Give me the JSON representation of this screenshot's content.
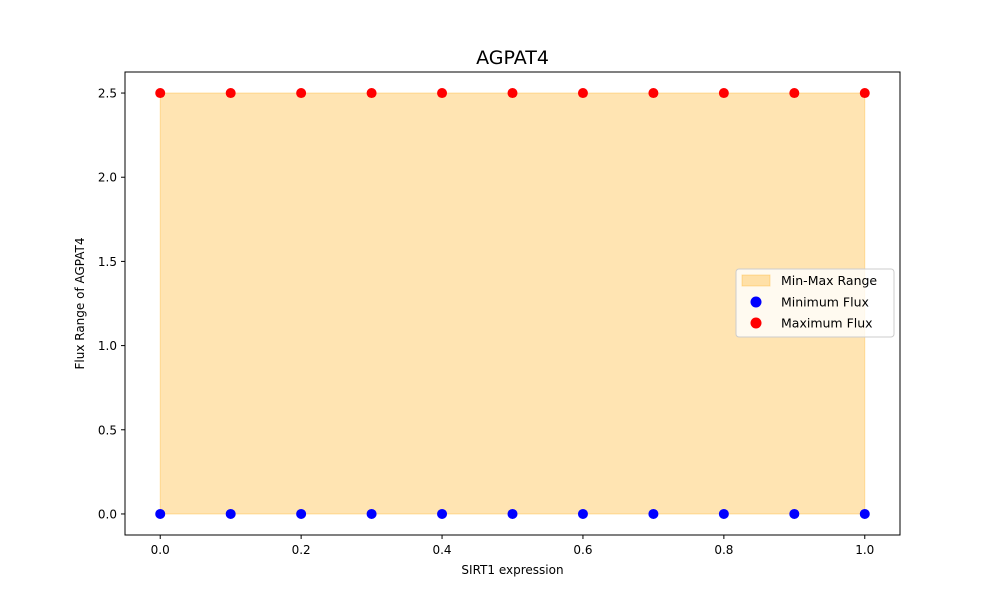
{
  "chart_data": {
    "type": "scatter",
    "title": "AGPAT4",
    "xlabel": "SIRT1 expression",
    "ylabel": "Flux Range of AGPAT4",
    "xlim": [
      -0.05,
      1.05
    ],
    "ylim": [
      -0.125,
      2.625
    ],
    "x_ticks": [
      0.0,
      0.2,
      0.4,
      0.6,
      0.8,
      1.0
    ],
    "x_tick_labels": [
      "0.0",
      "0.2",
      "0.4",
      "0.6",
      "0.8",
      "1.0"
    ],
    "y_ticks": [
      0.0,
      0.5,
      1.0,
      1.5,
      2.0,
      2.5
    ],
    "y_tick_labels": [
      "0.0",
      "0.5",
      "1.0",
      "1.5",
      "2.0",
      "2.5"
    ],
    "x": [
      0.0,
      0.1,
      0.2,
      0.3,
      0.4,
      0.5,
      0.6,
      0.7,
      0.8,
      0.9,
      1.0
    ],
    "grid": false,
    "legend_position": "center-right",
    "range_band": {
      "name": "Min-Max Range",
      "color": "#ffa500",
      "opacity": 0.3
    },
    "series": [
      {
        "name": "Minimum Flux",
        "color": "#0000ff",
        "values": [
          0,
          0,
          0,
          0,
          0,
          0,
          0,
          0,
          0,
          0,
          0
        ]
      },
      {
        "name": "Maximum Flux",
        "color": "#ff0000",
        "values": [
          2.5,
          2.5,
          2.5,
          2.5,
          2.5,
          2.5,
          2.5,
          2.5,
          2.5,
          2.5,
          2.5
        ]
      }
    ]
  }
}
